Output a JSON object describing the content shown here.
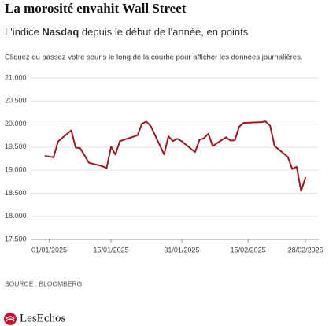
{
  "chart_data": {
    "type": "line",
    "title": "La morosité envahit Wall Street",
    "subtitle": [
      "L'indice",
      "Nasdaq",
      "depuis le début de l'année, en points"
    ],
    "instruction": "Cliquez ou passez votre souris le long de la courbe pour afficher les données journalières.",
    "source": "SOURCE : BLOOMBERG",
    "logo": "LesEchos",
    "x": [
      "2024-12-31",
      "2025-01-02",
      "2025-01-03",
      "2025-01-06",
      "2025-01-07",
      "2025-01-08",
      "2025-01-10",
      "2025-01-13",
      "2025-01-14",
      "2025-01-15",
      "2025-01-16",
      "2025-01-17",
      "2025-01-21",
      "2025-01-22",
      "2025-01-23",
      "2025-01-24",
      "2025-01-27",
      "2025-01-28",
      "2025-01-29",
      "2025-01-30",
      "2025-01-31",
      "2025-02-03",
      "2025-02-04",
      "2025-02-05",
      "2025-02-06",
      "2025-02-07",
      "2025-02-10",
      "2025-02-11",
      "2025-02-12",
      "2025-02-13",
      "2025-02-14",
      "2025-02-18",
      "2025-02-19",
      "2025-02-20",
      "2025-02-21",
      "2025-02-24",
      "2025-02-25",
      "2025-02-26",
      "2025-02-27",
      "2025-02-28"
    ],
    "series": [
      {
        "name": "Nasdaq",
        "color": "#a3161f",
        "values": [
          19311,
          19280,
          19621,
          19864,
          19489,
          19479,
          19161,
          19088,
          19044,
          19511,
          19338,
          19630,
          19757,
          20009,
          20053,
          19954,
          19342,
          19734,
          19632,
          19681,
          19627,
          19391,
          19654,
          19692,
          19791,
          19523,
          19714,
          19643,
          19649,
          19945,
          20026,
          20041,
          20056,
          19962,
          19524,
          19286,
          19026,
          19075,
          18544,
          18847
        ]
      }
    ],
    "xlim": [
      "2024-12-28",
      "2025-03-03"
    ],
    "xticks": [
      {
        "value": "2025-01-01",
        "label": "01/01/2025"
      },
      {
        "value": "2025-01-15",
        "label": "15/01/2025"
      },
      {
        "value": "2025-01-31",
        "label": "31/01/2025"
      },
      {
        "value": "2025-02-15",
        "label": "15/02/2025"
      },
      {
        "value": "2025-02-28",
        "label": "28/02/2025"
      }
    ],
    "ylim": [
      17500,
      21000
    ],
    "yticks": [
      {
        "value": 17500,
        "label": "17.500"
      },
      {
        "value": 18000,
        "label": "18.000"
      },
      {
        "value": 18500,
        "label": "18.500"
      },
      {
        "value": 19000,
        "label": "19.000"
      },
      {
        "value": 19500,
        "label": "19.500"
      },
      {
        "value": 20000,
        "label": "20.000"
      },
      {
        "value": 20500,
        "label": "20.500"
      },
      {
        "value": 21000,
        "label": "21.000"
      }
    ],
    "grid": true
  }
}
